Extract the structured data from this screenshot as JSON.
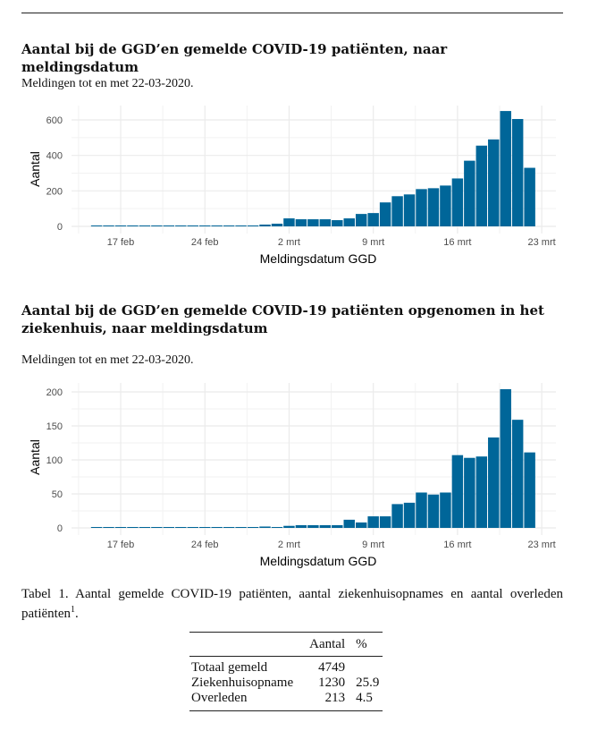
{
  "sections": [
    {
      "title": "Aantal bij de GGD’en gemelde COVID-19 patiënten, naar meldingsdatum",
      "subtitle": "Meldingen tot en met 22-03-2020."
    },
    {
      "title": "Aantal bij de GGD’en gemelde COVID-19 patiënten opgenomen in het ziekenhuis, naar meldingsdatum",
      "subtitle": "Meldingen tot en met 22-03-2020."
    }
  ],
  "chart_data": [
    {
      "type": "bar",
      "xlabel": "Meldingsdatum GGD",
      "ylabel": "Aantal",
      "x_ticks": [
        {
          "date": "2020-02-17",
          "label": "17 feb"
        },
        {
          "date": "2020-02-24",
          "label": "24 feb"
        },
        {
          "date": "2020-03-02",
          "label": "2 mrt"
        },
        {
          "date": "2020-03-09",
          "label": "9 mrt"
        },
        {
          "date": "2020-03-16",
          "label": "16 mrt"
        },
        {
          "date": "2020-03-23",
          "label": "23 mrt"
        }
      ],
      "y_ticks": [
        0,
        200,
        400,
        600
      ],
      "ylim": [
        0,
        680
      ],
      "grid": true,
      "bar_color": "#006699",
      "start_date": "2020-02-15",
      "values": [
        1,
        1,
        1,
        1,
        1,
        1,
        1,
        1,
        1,
        1,
        1,
        1,
        3,
        3,
        10,
        15,
        45,
        40,
        40,
        40,
        35,
        45,
        70,
        75,
        135,
        170,
        180,
        210,
        215,
        230,
        270,
        370,
        455,
        490,
        650,
        605,
        330
      ]
    },
    {
      "type": "bar",
      "xlabel": "Meldingsdatum GGD",
      "ylabel": "Aantal",
      "x_ticks": [
        {
          "date": "2020-02-17",
          "label": "17 feb"
        },
        {
          "date": "2020-02-24",
          "label": "24 feb"
        },
        {
          "date": "2020-03-02",
          "label": "2 mrt"
        },
        {
          "date": "2020-03-09",
          "label": "9 mrt"
        },
        {
          "date": "2020-03-16",
          "label": "16 mrt"
        },
        {
          "date": "2020-03-23",
          "label": "23 mrt"
        }
      ],
      "y_ticks": [
        0,
        50,
        100,
        150,
        200
      ],
      "ylim": [
        0,
        215
      ],
      "grid": true,
      "bar_color": "#006699",
      "start_date": "2020-02-15",
      "values": [
        1,
        1,
        1,
        1,
        1,
        1,
        1,
        1,
        1,
        1,
        1,
        1,
        1,
        1,
        2,
        1,
        3,
        4,
        4,
        4,
        4,
        12,
        8,
        17,
        17,
        35,
        37,
        52,
        49,
        52,
        107,
        103,
        105,
        133,
        204,
        159,
        111
      ]
    }
  ],
  "table": {
    "caption": "Tabel 1.  Aantal gemelde COVID-19 patiënten, aantal ziekenhuisopnames en aantal overleden patiënten",
    "footnote_mark": "1",
    "caption_end": ".",
    "headers": [
      "",
      "Aantal",
      "%"
    ],
    "rows": [
      [
        "Totaal gemeld",
        "4749",
        ""
      ],
      [
        "Ziekenhuisopname",
        "1230",
        "25.9"
      ],
      [
        "Overleden",
        "213",
        "4.5"
      ]
    ]
  }
}
